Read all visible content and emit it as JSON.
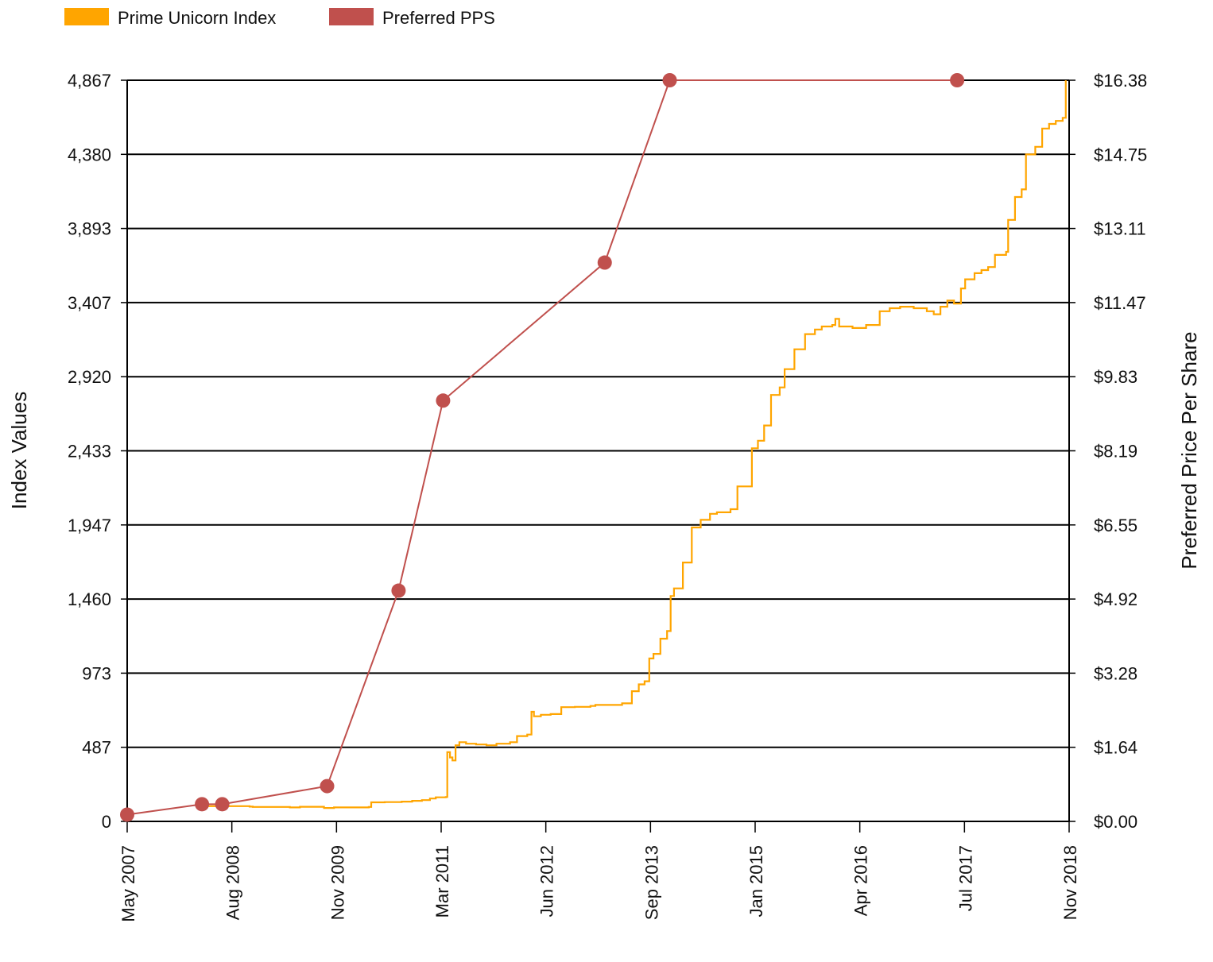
{
  "chart_data": {
    "type": "line",
    "legend": {
      "placement": "top-left",
      "entries": [
        {
          "label": "Prime Unicorn Index",
          "color": "#ffa500"
        },
        {
          "label": "Preferred PPS",
          "color": "#c0504d"
        }
      ]
    },
    "x_ticks": [
      "May 2007",
      "Aug 2008",
      "Nov 2009",
      "Mar 2011",
      "Jun 2012",
      "Sep 2013",
      "Jan 2015",
      "Apr 2016",
      "Jul 2017",
      "Nov 2018"
    ],
    "x_range": [
      "2007-05-01",
      "2018-11-30"
    ],
    "y_left": {
      "label": "Index Values",
      "ticks": [
        "0",
        "487",
        "973",
        "1,460",
        "1,947",
        "2,433",
        "2,920",
        "3,407",
        "3,893",
        "4,380",
        "4,867"
      ],
      "range": [
        0,
        4867
      ]
    },
    "y_right": {
      "label": "Preferred Price Per Share",
      "ticks": [
        "$0.00",
        "$1.64",
        "$3.28",
        "$4.92",
        "$6.55",
        "$8.19",
        "$9.83",
        "$11.47",
        "$13.11",
        "$14.75",
        "$16.38"
      ],
      "range": [
        0,
        16.38
      ]
    },
    "grid": true,
    "series": [
      {
        "name": "Prime Unicorn Index",
        "axis": "left",
        "color": "#ffa500",
        "step": true,
        "points": [
          [
            "2008-04-15",
            100
          ],
          [
            "2008-11-01",
            97
          ],
          [
            "2008-11-15",
            95
          ],
          [
            "2009-05-01",
            92
          ],
          [
            "2009-06-15",
            96
          ],
          [
            "2009-10-01",
            88
          ],
          [
            "2009-11-15",
            92
          ],
          [
            "2010-04-20",
            95
          ],
          [
            "2010-05-01",
            125
          ],
          [
            "2010-07-01",
            127
          ],
          [
            "2010-09-15",
            130
          ],
          [
            "2010-11-01",
            135
          ],
          [
            "2010-12-15",
            140
          ],
          [
            "2011-01-20",
            150
          ],
          [
            "2011-02-15",
            158
          ],
          [
            "2011-04-01",
            160
          ],
          [
            "2011-04-08",
            455
          ],
          [
            "2011-04-20",
            420
          ],
          [
            "2011-05-01",
            400
          ],
          [
            "2011-05-15",
            500
          ],
          [
            "2011-06-01",
            520
          ],
          [
            "2011-07-01",
            510
          ],
          [
            "2011-08-15",
            505
          ],
          [
            "2011-10-01",
            500
          ],
          [
            "2011-11-15",
            510
          ],
          [
            "2012-01-15",
            520
          ],
          [
            "2012-02-15",
            560
          ],
          [
            "2012-04-01",
            570
          ],
          [
            "2012-04-20",
            720
          ],
          [
            "2012-05-01",
            690
          ],
          [
            "2012-06-01",
            700
          ],
          [
            "2012-07-15",
            705
          ],
          [
            "2012-09-01",
            750
          ],
          [
            "2012-11-01",
            752
          ],
          [
            "2013-01-10",
            758
          ],
          [
            "2013-02-01",
            765
          ],
          [
            "2013-05-01",
            765
          ],
          [
            "2013-06-01",
            775
          ],
          [
            "2013-07-15",
            855
          ],
          [
            "2013-08-15",
            900
          ],
          [
            "2013-09-10",
            920
          ],
          [
            "2013-10-01",
            1070
          ],
          [
            "2013-10-20",
            1100
          ],
          [
            "2013-11-20",
            1200
          ],
          [
            "2013-12-20",
            1250
          ],
          [
            "2014-01-05",
            1480
          ],
          [
            "2014-01-20",
            1530
          ],
          [
            "2014-03-01",
            1700
          ],
          [
            "2014-04-10",
            1930
          ],
          [
            "2014-05-20",
            1980
          ],
          [
            "2014-07-01",
            2020
          ],
          [
            "2014-08-01",
            2030
          ],
          [
            "2014-10-01",
            2050
          ],
          [
            "2014-11-01",
            2200
          ],
          [
            "2015-01-05",
            2450
          ],
          [
            "2015-02-01",
            2500
          ],
          [
            "2015-03-01",
            2600
          ],
          [
            "2015-04-01",
            2800
          ],
          [
            "2015-05-10",
            2850
          ],
          [
            "2015-06-01",
            2970
          ],
          [
            "2015-07-15",
            3100
          ],
          [
            "2015-09-01",
            3200
          ],
          [
            "2015-10-15",
            3230
          ],
          [
            "2015-11-15",
            3250
          ],
          [
            "2016-01-01",
            3260
          ],
          [
            "2016-01-15",
            3300
          ],
          [
            "2016-02-01",
            3250
          ],
          [
            "2016-04-01",
            3240
          ],
          [
            "2016-06-01",
            3260
          ],
          [
            "2016-08-01",
            3350
          ],
          [
            "2016-09-15",
            3370
          ],
          [
            "2016-11-01",
            3380
          ],
          [
            "2017-01-01",
            3370
          ],
          [
            "2017-03-01",
            3350
          ],
          [
            "2017-04-01",
            3330
          ],
          [
            "2017-05-01",
            3380
          ],
          [
            "2017-06-01",
            3420
          ],
          [
            "2017-07-01",
            3400
          ],
          [
            "2017-08-01",
            3500
          ],
          [
            "2017-08-20",
            3560
          ],
          [
            "2017-10-01",
            3600
          ],
          [
            "2017-11-01",
            3620
          ],
          [
            "2017-12-01",
            3640
          ],
          [
            "2018-01-01",
            3720
          ],
          [
            "2018-02-20",
            3740
          ],
          [
            "2018-03-01",
            3950
          ],
          [
            "2018-04-01",
            4100
          ],
          [
            "2018-05-01",
            4150
          ],
          [
            "2018-05-20",
            4380
          ],
          [
            "2018-07-01",
            4430
          ],
          [
            "2018-08-01",
            4550
          ],
          [
            "2018-09-01",
            4580
          ],
          [
            "2018-10-01",
            4600
          ],
          [
            "2018-11-01",
            4620
          ],
          [
            "2018-11-15",
            4867
          ]
        ]
      },
      {
        "name": "Preferred PPS",
        "axis": "right",
        "color": "#c0504d",
        "markers": true,
        "points": [
          [
            "2007-05-01",
            0.15
          ],
          [
            "2008-04-01",
            0.38
          ],
          [
            "2008-07-01",
            0.38
          ],
          [
            "2009-10-15",
            0.78
          ],
          [
            "2010-09-01",
            5.1
          ],
          [
            "2011-03-20",
            9.3
          ],
          [
            "2013-03-15",
            12.35
          ],
          [
            "2014-01-01",
            16.38
          ],
          [
            "2017-07-15",
            16.38
          ]
        ]
      }
    ]
  }
}
